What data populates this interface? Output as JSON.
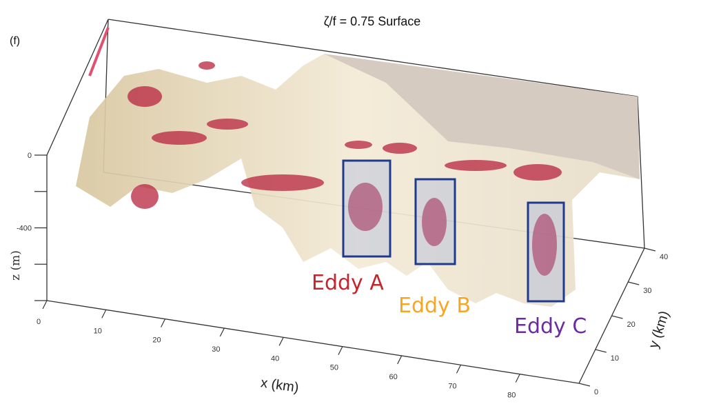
{
  "chart_data": {
    "type": "surface",
    "title": "ζ/f = 0.75 Surface",
    "panel_label": "(f)",
    "xlabel": "x (km)",
    "ylabel": "y (km)",
    "zlabel": "z (m)",
    "x_ticks": [
      "0",
      "10",
      "20",
      "30",
      "40",
      "50",
      "60",
      "70",
      "80"
    ],
    "y_ticks": [
      "0",
      "10",
      "20",
      "30",
      "40"
    ],
    "z_ticks": [
      "0",
      "-400"
    ],
    "xlim": [
      0,
      90
    ],
    "ylim": [
      0,
      40
    ],
    "zlim": [
      -800,
      0
    ],
    "surface_color": "#e8dcc0",
    "isosurface_color": "#b8243f",
    "annotations": [
      {
        "label": "Eddy A",
        "color": "#c1272d",
        "box_color": "#1f3a8a"
      },
      {
        "label": "Eddy B",
        "color": "#f5a623",
        "box_color": "#1f3a8a"
      },
      {
        "label": "Eddy C",
        "color": "#6a2c9e",
        "box_color": "#1f3a8a"
      }
    ]
  }
}
